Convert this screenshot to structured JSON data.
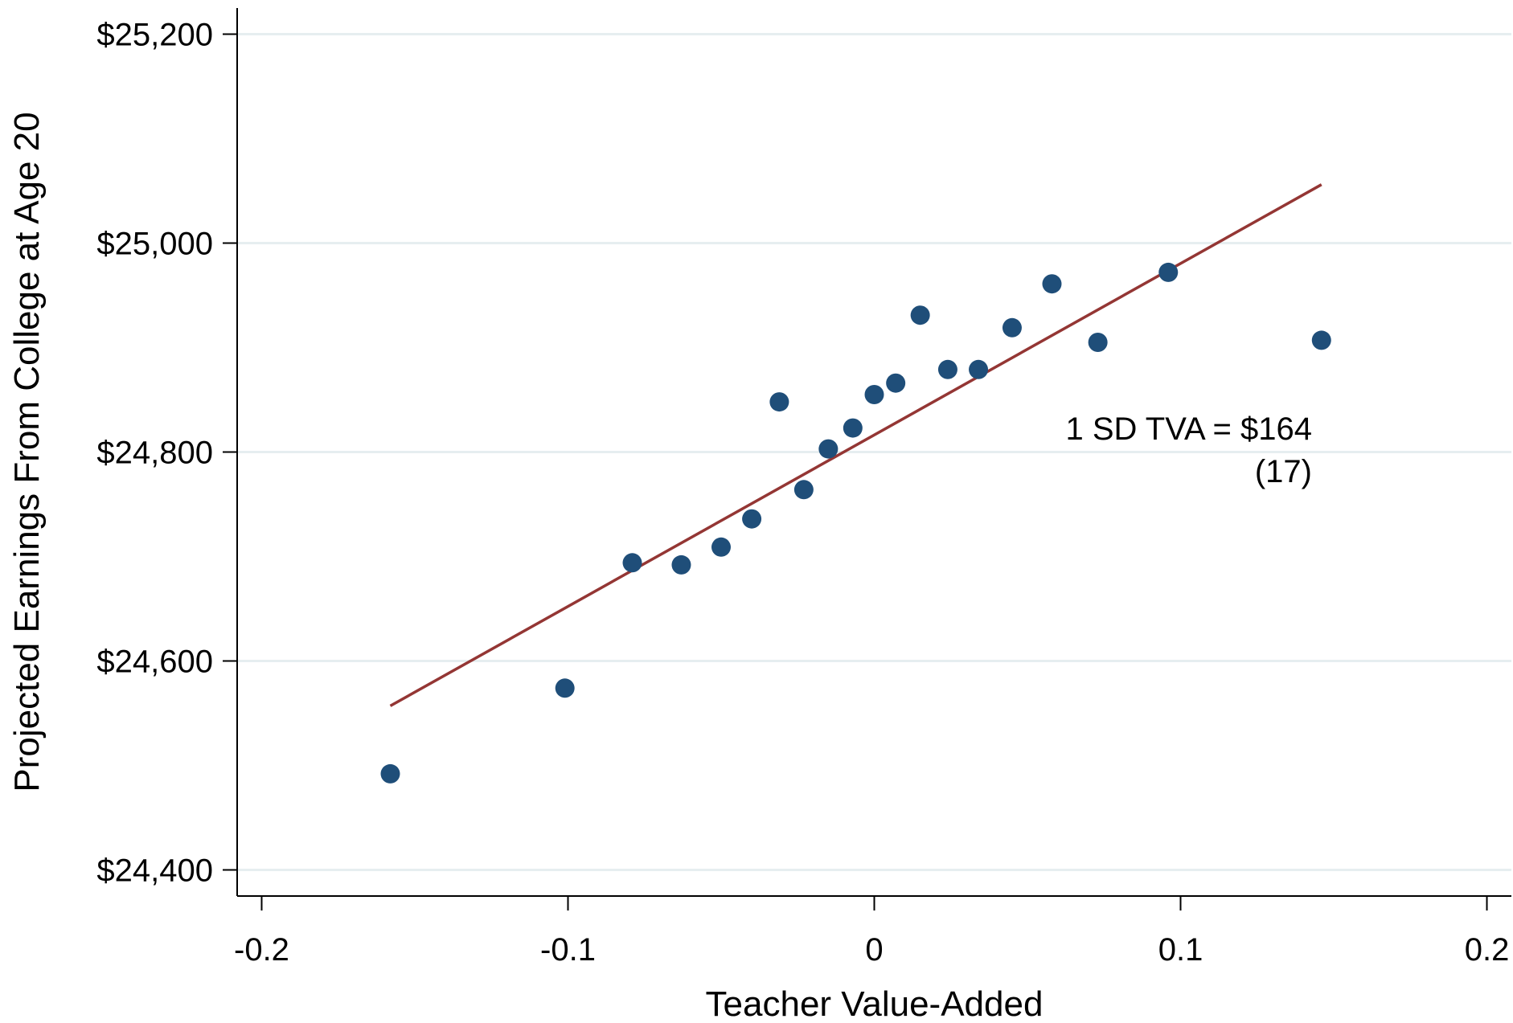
{
  "chart_data": {
    "type": "scatter",
    "title": "",
    "xlabel": "Teacher Value-Added",
    "ylabel": "Projected Earnings From College at Age 20",
    "xlim": [
      -0.208,
      0.208
    ],
    "ylim": [
      24375,
      25225
    ],
    "x_ticks": [
      -0.2,
      -0.1,
      0,
      0.1,
      0.2
    ],
    "x_tick_labels": [
      "-0.2",
      "-0.1",
      "0",
      "0.1",
      "0.2"
    ],
    "y_ticks": [
      24400,
      24600,
      24800,
      25000,
      25200
    ],
    "y_tick_labels": [
      "$24,400",
      "$24,600",
      "$24,800",
      "$25,000",
      "$25,200"
    ],
    "grid": "horizontal",
    "legend": "none",
    "colors": {
      "points": "#1f4e79",
      "fit_line": "#943634",
      "grid": "#e6eef0",
      "axis": "#000000"
    },
    "series": [
      {
        "type": "scatter",
        "points": [
          {
            "x": -0.158,
            "y": 24492
          },
          {
            "x": -0.101,
            "y": 24574
          },
          {
            "x": -0.079,
            "y": 24694
          },
          {
            "x": -0.063,
            "y": 24692
          },
          {
            "x": -0.05,
            "y": 24709
          },
          {
            "x": -0.04,
            "y": 24736
          },
          {
            "x": -0.031,
            "y": 24848
          },
          {
            "x": -0.023,
            "y": 24764
          },
          {
            "x": -0.015,
            "y": 24803
          },
          {
            "x": -0.007,
            "y": 24823
          },
          {
            "x": 0.0,
            "y": 24855
          },
          {
            "x": 0.007,
            "y": 24866
          },
          {
            "x": 0.015,
            "y": 24931
          },
          {
            "x": 0.024,
            "y": 24879
          },
          {
            "x": 0.034,
            "y": 24879
          },
          {
            "x": 0.045,
            "y": 24919
          },
          {
            "x": 0.058,
            "y": 24961
          },
          {
            "x": 0.073,
            "y": 24905
          },
          {
            "x": 0.096,
            "y": 24972
          },
          {
            "x": 0.146,
            "y": 24907
          }
        ]
      },
      {
        "type": "line",
        "points": [
          {
            "x": -0.158,
            "y": 24557
          },
          {
            "x": 0.146,
            "y": 25056
          }
        ]
      }
    ],
    "annotations": [
      "1 SD TVA = $164",
      "(17)"
    ]
  }
}
